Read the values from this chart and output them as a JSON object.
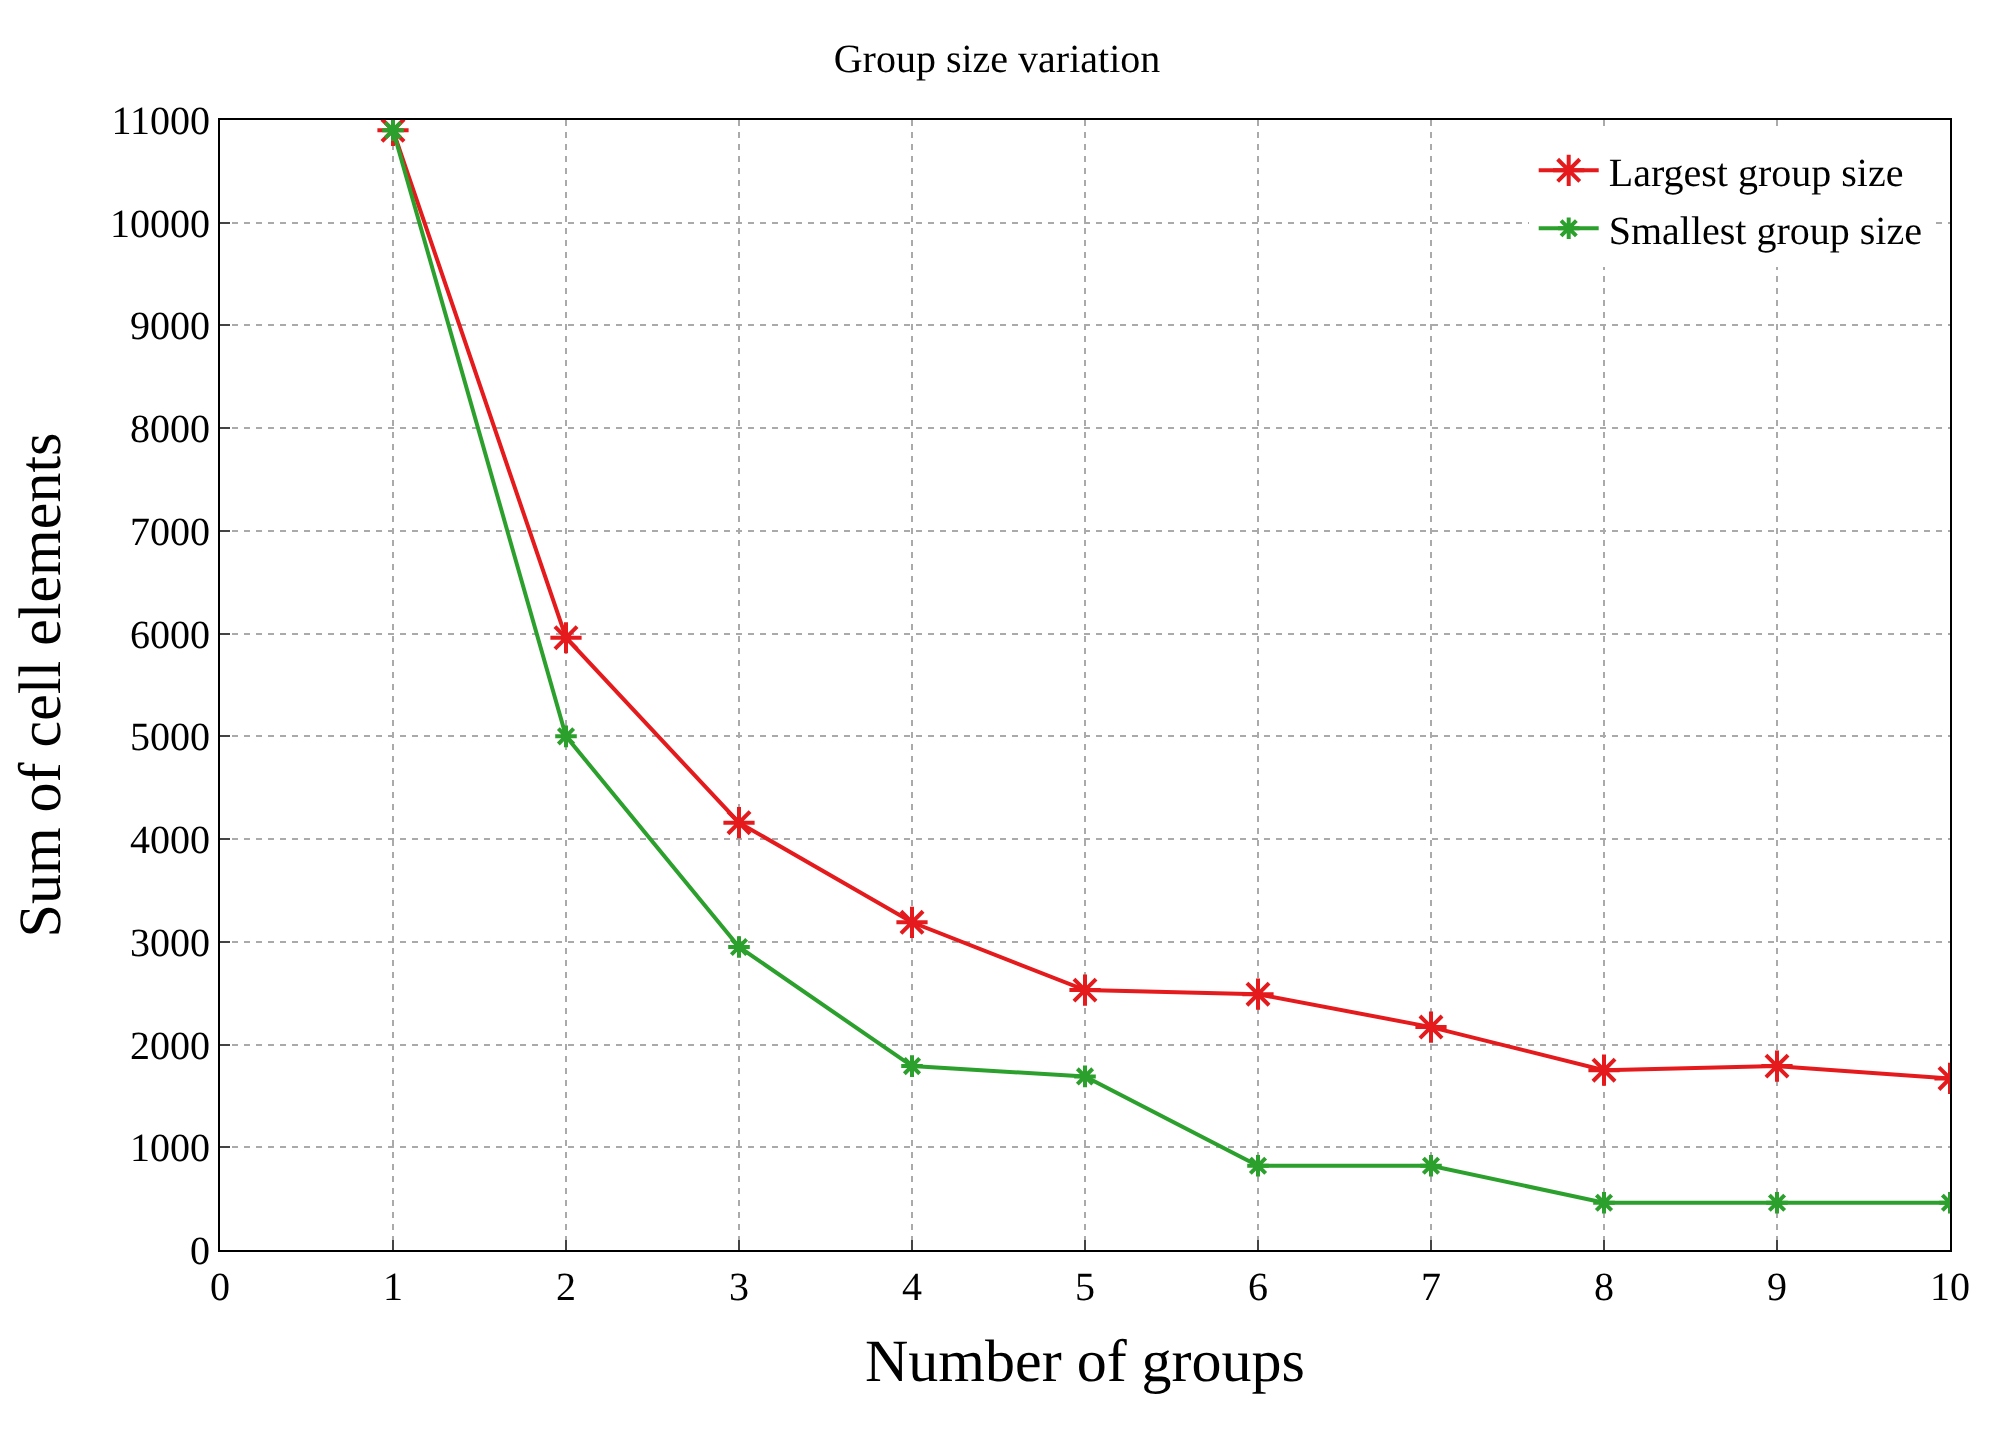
{
  "chart_data": {
    "type": "line",
    "title": "Group size variation",
    "xlabel": "Number of groups",
    "ylabel": "Sum of cell elements",
    "x": [
      1,
      2,
      3,
      4,
      5,
      6,
      7,
      8,
      9,
      10
    ],
    "series": [
      {
        "name": "Largest group size",
        "color": "#e41a1c",
        "values": [
          10900,
          5960,
          4160,
          3190,
          2530,
          2490,
          2170,
          1750,
          1790,
          1670
        ]
      },
      {
        "name": "Smallest group size",
        "color": "#2ca02c",
        "values": [
          10900,
          5000,
          2950,
          1790,
          1690,
          820,
          820,
          460,
          460,
          460
        ]
      }
    ],
    "xlim": [
      0,
      10
    ],
    "xticks": [
      0,
      1,
      2,
      3,
      4,
      5,
      6,
      7,
      8,
      9,
      10
    ],
    "ylim": [
      0,
      11000
    ],
    "yticks": [
      0,
      1000,
      2000,
      3000,
      4000,
      5000,
      6000,
      7000,
      8000,
      9000,
      10000,
      11000
    ],
    "grid": true,
    "legend": "top right",
    "marker": "cross",
    "line_style": "solid"
  }
}
